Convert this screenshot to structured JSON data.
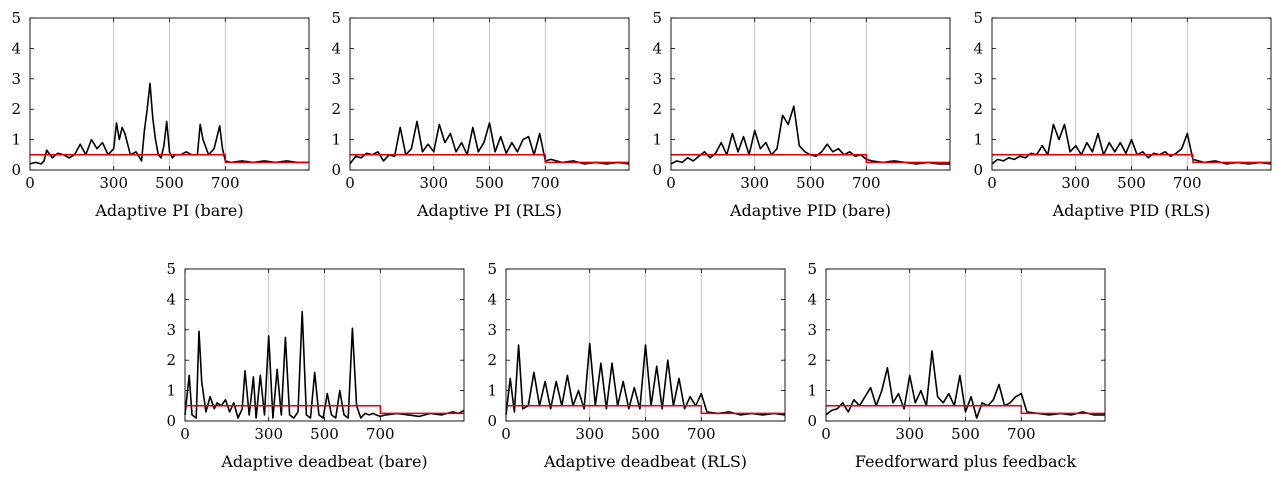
{
  "chart_data": [
    {
      "type": "line",
      "title": "Adaptive PI (bare)",
      "xticks": [
        0,
        300,
        500,
        700
      ],
      "yticks": [
        0,
        1,
        2,
        3,
        4,
        5
      ],
      "xlim": [
        0,
        1000
      ],
      "ylim": [
        0,
        5
      ],
      "vgrid": [
        300,
        500,
        700
      ],
      "series": [
        {
          "color": "#000000",
          "x": [
            0,
            20,
            40,
            50,
            60,
            80,
            100,
            120,
            140,
            160,
            180,
            200,
            220,
            240,
            260,
            280,
            300,
            310,
            320,
            330,
            340,
            360,
            380,
            400,
            410,
            420,
            430,
            440,
            450,
            460,
            470,
            480,
            490,
            500,
            510,
            520,
            540,
            560,
            580,
            600,
            610,
            620,
            640,
            660,
            680,
            690,
            700,
            720,
            760,
            800,
            840,
            880,
            920,
            960,
            1000
          ],
          "y": [
            0.2,
            0.25,
            0.2,
            0.3,
            0.65,
            0.4,
            0.55,
            0.5,
            0.4,
            0.5,
            0.85,
            0.5,
            1.0,
            0.7,
            0.9,
            0.5,
            0.7,
            1.55,
            1.0,
            1.4,
            1.2,
            0.5,
            0.6,
            0.3,
            1.3,
            2.0,
            2.85,
            1.7,
            1.0,
            0.5,
            0.4,
            0.8,
            1.6,
            0.6,
            0.4,
            0.5,
            0.5,
            0.6,
            0.5,
            0.5,
            1.5,
            1.0,
            0.5,
            0.7,
            1.45,
            0.7,
            0.3,
            0.25,
            0.3,
            0.25,
            0.3,
            0.25,
            0.3,
            0.25,
            0.25
          ]
        },
        {
          "color": "#e00000",
          "x": [
            0,
            700,
            700,
            1000
          ],
          "y": [
            0.5,
            0.5,
            0.25,
            0.25
          ]
        }
      ]
    },
    {
      "type": "line",
      "title": "Adaptive PI (RLS)",
      "xticks": [
        0,
        300,
        500,
        700
      ],
      "yticks": [
        0,
        1,
        2,
        3,
        4,
        5
      ],
      "xlim": [
        0,
        1000
      ],
      "ylim": [
        0,
        5
      ],
      "vgrid": [
        300,
        500,
        700
      ],
      "series": [
        {
          "color": "#000000",
          "x": [
            0,
            20,
            40,
            60,
            80,
            100,
            120,
            140,
            160,
            180,
            200,
            220,
            240,
            260,
            280,
            300,
            320,
            340,
            360,
            380,
            400,
            420,
            440,
            460,
            480,
            500,
            520,
            540,
            560,
            580,
            600,
            620,
            640,
            660,
            680,
            700,
            720,
            760,
            800,
            840,
            880,
            920,
            960,
            1000
          ],
          "y": [
            0.2,
            0.45,
            0.4,
            0.55,
            0.5,
            0.6,
            0.3,
            0.5,
            0.45,
            1.4,
            0.5,
            0.7,
            1.6,
            0.6,
            0.85,
            0.6,
            1.5,
            0.9,
            1.2,
            0.6,
            0.9,
            0.5,
            1.4,
            0.6,
            0.9,
            1.55,
            0.6,
            1.1,
            0.55,
            0.9,
            0.6,
            1.0,
            1.1,
            0.5,
            1.2,
            0.3,
            0.35,
            0.25,
            0.3,
            0.2,
            0.25,
            0.2,
            0.25,
            0.2
          ]
        },
        {
          "color": "#e00000",
          "x": [
            0,
            700,
            700,
            1000
          ],
          "y": [
            0.5,
            0.5,
            0.25,
            0.25
          ]
        }
      ]
    },
    {
      "type": "line",
      "title": "Adaptive PID (bare)",
      "xticks": [
        0,
        300,
        500,
        700
      ],
      "yticks": [
        0,
        1,
        2,
        3,
        4,
        5
      ],
      "xlim": [
        0,
        1000
      ],
      "ylim": [
        0,
        5
      ],
      "vgrid": [
        300,
        500,
        700
      ],
      "series": [
        {
          "color": "#000000",
          "x": [
            0,
            20,
            40,
            60,
            80,
            100,
            120,
            140,
            160,
            180,
            200,
            220,
            240,
            260,
            280,
            300,
            320,
            340,
            360,
            380,
            400,
            420,
            440,
            460,
            480,
            500,
            520,
            540,
            560,
            580,
            600,
            620,
            640,
            660,
            680,
            700,
            720,
            760,
            800,
            840,
            880,
            920,
            960,
            1000
          ],
          "y": [
            0.2,
            0.3,
            0.25,
            0.4,
            0.3,
            0.45,
            0.6,
            0.4,
            0.55,
            0.9,
            0.5,
            1.2,
            0.6,
            1.1,
            0.5,
            1.3,
            0.7,
            0.9,
            0.5,
            0.7,
            1.8,
            1.5,
            2.1,
            0.8,
            0.6,
            0.5,
            0.45,
            0.6,
            0.85,
            0.6,
            0.7,
            0.5,
            0.6,
            0.45,
            0.5,
            0.35,
            0.3,
            0.25,
            0.3,
            0.25,
            0.2,
            0.25,
            0.2,
            0.2
          ]
        },
        {
          "color": "#e00000",
          "x": [
            0,
            700,
            700,
            1000
          ],
          "y": [
            0.5,
            0.5,
            0.25,
            0.25
          ]
        }
      ]
    },
    {
      "type": "line",
      "title": "Adaptive PID (RLS)",
      "xticks": [
        0,
        300,
        500,
        700
      ],
      "yticks": [
        0,
        1,
        2,
        3,
        4,
        5
      ],
      "xlim": [
        0,
        1000
      ],
      "ylim": [
        0,
        5
      ],
      "vgrid": [
        300,
        500,
        700
      ],
      "series": [
        {
          "color": "#000000",
          "x": [
            0,
            20,
            40,
            60,
            80,
            100,
            120,
            140,
            160,
            180,
            200,
            220,
            240,
            260,
            280,
            300,
            320,
            340,
            360,
            380,
            400,
            420,
            440,
            460,
            480,
            500,
            520,
            540,
            560,
            580,
            600,
            620,
            640,
            660,
            680,
            700,
            720,
            760,
            800,
            840,
            880,
            920,
            960,
            1000
          ],
          "y": [
            0.2,
            0.35,
            0.3,
            0.4,
            0.35,
            0.45,
            0.4,
            0.55,
            0.5,
            0.8,
            0.5,
            1.5,
            1.0,
            1.5,
            0.6,
            0.8,
            0.5,
            0.9,
            0.6,
            1.2,
            0.5,
            0.9,
            0.6,
            0.9,
            0.55,
            1.0,
            0.5,
            0.6,
            0.4,
            0.55,
            0.5,
            0.6,
            0.45,
            0.55,
            0.7,
            1.2,
            0.35,
            0.25,
            0.3,
            0.2,
            0.25,
            0.2,
            0.25,
            0.2
          ]
        },
        {
          "color": "#e00000",
          "x": [
            0,
            720,
            720,
            1000
          ],
          "y": [
            0.5,
            0.5,
            0.25,
            0.25
          ]
        }
      ]
    },
    {
      "type": "line",
      "title": "Adaptive deadbeat (bare)",
      "xticks": [
        0,
        300,
        500,
        700
      ],
      "yticks": [
        0,
        1,
        2,
        3,
        4,
        5
      ],
      "xlim": [
        0,
        1000
      ],
      "ylim": [
        0,
        5
      ],
      "vgrid": [
        300,
        500,
        700
      ],
      "series": [
        {
          "color": "#000000",
          "x": [
            0,
            15,
            25,
            40,
            50,
            60,
            75,
            90,
            105,
            115,
            130,
            145,
            160,
            175,
            190,
            205,
            215,
            230,
            245,
            255,
            270,
            285,
            300,
            315,
            330,
            345,
            360,
            375,
            390,
            405,
            420,
            435,
            450,
            465,
            480,
            495,
            510,
            525,
            540,
            555,
            570,
            585,
            600,
            615,
            630,
            645,
            660,
            675,
            685,
            700,
            720,
            760,
            800,
            840,
            880,
            920,
            960,
            980,
            1000
          ],
          "y": [
            0.2,
            1.5,
            0.2,
            0.1,
            2.95,
            1.3,
            0.3,
            0.8,
            0.4,
            0.6,
            0.5,
            0.7,
            0.3,
            0.6,
            0.1,
            0.4,
            1.65,
            0.2,
            1.45,
            0.1,
            1.5,
            0.2,
            2.8,
            0.1,
            1.7,
            0.2,
            2.75,
            0.2,
            0.1,
            0.3,
            3.6,
            0.2,
            0.1,
            1.6,
            0.2,
            0.1,
            0.9,
            0.2,
            0.1,
            1.0,
            0.2,
            0.1,
            3.05,
            0.5,
            0.1,
            0.25,
            0.2,
            0.25,
            0.2,
            0.15,
            0.2,
            0.25,
            0.2,
            0.15,
            0.25,
            0.2,
            0.3,
            0.25,
            0.35
          ]
        },
        {
          "color": "#e00000",
          "x": [
            0,
            700,
            700,
            1000
          ],
          "y": [
            0.5,
            0.5,
            0.25,
            0.25
          ]
        }
      ]
    },
    {
      "type": "line",
      "title": "Adaptive deadbeat (RLS)",
      "xticks": [
        0,
        300,
        500,
        700
      ],
      "yticks": [
        0,
        1,
        2,
        3,
        4,
        5
      ],
      "xlim": [
        0,
        1000
      ],
      "ylim": [
        0,
        5
      ],
      "vgrid": [
        300,
        500,
        700
      ],
      "series": [
        {
          "color": "#000000",
          "x": [
            0,
            15,
            30,
            45,
            60,
            80,
            100,
            120,
            140,
            160,
            180,
            200,
            220,
            240,
            260,
            280,
            300,
            320,
            340,
            360,
            380,
            400,
            420,
            440,
            460,
            480,
            500,
            520,
            540,
            560,
            580,
            600,
            620,
            640,
            660,
            680,
            700,
            720,
            760,
            800,
            840,
            880,
            920,
            960,
            1000
          ],
          "y": [
            0.2,
            1.4,
            0.3,
            2.5,
            0.4,
            0.5,
            1.6,
            0.5,
            1.3,
            0.4,
            1.3,
            0.5,
            1.5,
            0.5,
            1.0,
            0.4,
            2.55,
            0.5,
            1.9,
            0.4,
            1.9,
            0.5,
            1.3,
            0.4,
            1.1,
            0.4,
            2.5,
            0.5,
            1.8,
            0.4,
            2.0,
            0.5,
            1.4,
            0.4,
            0.8,
            0.5,
            0.9,
            0.3,
            0.25,
            0.3,
            0.2,
            0.25,
            0.2,
            0.25,
            0.2
          ]
        },
        {
          "color": "#e00000",
          "x": [
            0,
            700,
            700,
            1000
          ],
          "y": [
            0.5,
            0.5,
            0.25,
            0.25
          ]
        }
      ]
    },
    {
      "type": "line",
      "title": "Feedforward plus feedback",
      "xticks": [
        0,
        300,
        500,
        700
      ],
      "yticks": [
        0,
        1,
        2,
        3,
        4,
        5
      ],
      "xlim": [
        0,
        1000
      ],
      "ylim": [
        0,
        5
      ],
      "vgrid": [
        300,
        500,
        700
      ],
      "series": [
        {
          "color": "#000000",
          "x": [
            0,
            20,
            40,
            60,
            80,
            100,
            120,
            140,
            160,
            180,
            200,
            220,
            240,
            260,
            280,
            300,
            320,
            340,
            360,
            380,
            400,
            420,
            440,
            460,
            480,
            500,
            520,
            540,
            560,
            580,
            600,
            620,
            640,
            660,
            680,
            700,
            720,
            760,
            800,
            840,
            880,
            920,
            960,
            1000
          ],
          "y": [
            0.2,
            0.35,
            0.4,
            0.6,
            0.3,
            0.7,
            0.5,
            0.8,
            1.1,
            0.5,
            1.0,
            1.75,
            0.6,
            0.9,
            0.4,
            1.5,
            0.6,
            1.0,
            0.5,
            2.3,
            0.8,
            0.6,
            0.9,
            0.5,
            1.5,
            0.3,
            0.8,
            0.1,
            0.6,
            0.5,
            0.7,
            1.2,
            0.5,
            0.6,
            0.8,
            0.9,
            0.3,
            0.25,
            0.2,
            0.25,
            0.2,
            0.3,
            0.2,
            0.2
          ]
        },
        {
          "color": "#e00000",
          "x": [
            0,
            700,
            700,
            1000
          ],
          "y": [
            0.5,
            0.5,
            0.25,
            0.25
          ]
        }
      ]
    }
  ]
}
